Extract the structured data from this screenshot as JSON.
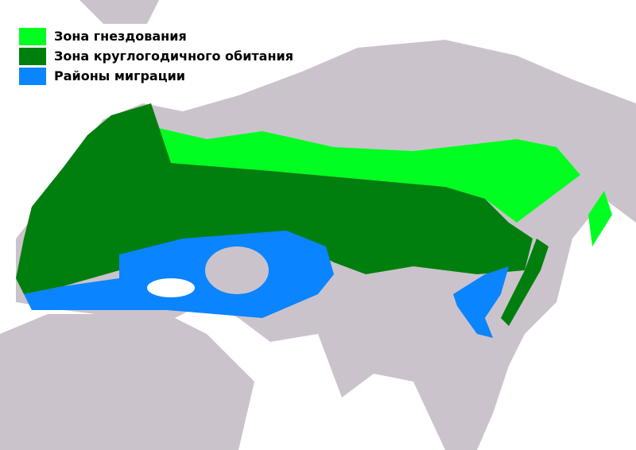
{
  "legend": [
    {
      "label": "Зона гнездования",
      "color": "#00ff21"
    },
    {
      "label": "Зона круглогодичного обитания",
      "color": "#007f0e"
    },
    {
      "label": "Районы миграции",
      "color": "#0a84ff"
    }
  ],
  "colors": {
    "land": "#cbc3cb",
    "water": "#ffffff"
  }
}
